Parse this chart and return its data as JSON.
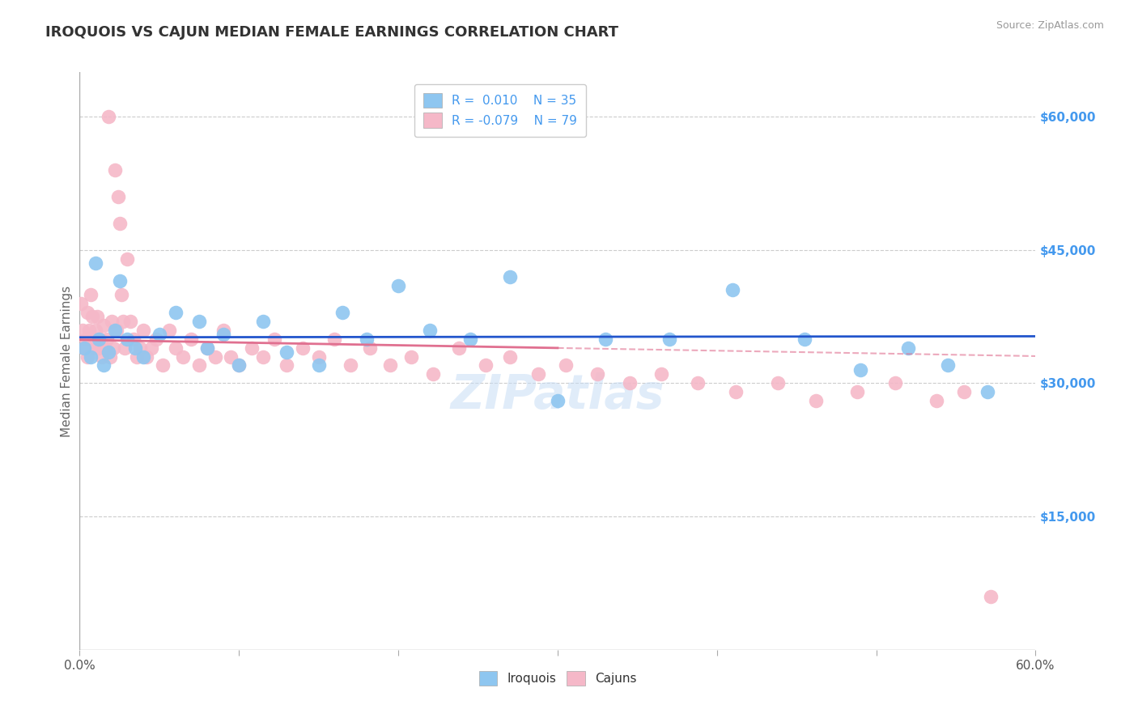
{
  "title": "IROQUOIS VS CAJUN MEDIAN FEMALE EARNINGS CORRELATION CHART",
  "source_text": "Source: ZipAtlas.com",
  "ylabel": "Median Female Earnings",
  "x_min": 0.0,
  "x_max": 0.6,
  "y_min": 0,
  "y_max": 65000,
  "y_ticks": [
    15000,
    30000,
    45000,
    60000
  ],
  "y_tick_labels": [
    "$15,000",
    "$30,000",
    "$45,000",
    "$60,000"
  ],
  "iroquois_color": "#8ec6f0",
  "cajun_color": "#f5b8c8",
  "iroquois_line_color": "#2255cc",
  "cajun_line_color": "#e07090",
  "legend_bottom_iroquois": "Iroquois",
  "legend_bottom_cajun": "Cajuns",
  "R_iroquois": 0.01,
  "R_cajun": -0.079,
  "N_iroquois": 35,
  "N_cajun": 79,
  "iroquois_x": [
    0.003,
    0.007,
    0.01,
    0.012,
    0.015,
    0.018,
    0.022,
    0.025,
    0.03,
    0.035,
    0.04,
    0.05,
    0.06,
    0.075,
    0.08,
    0.09,
    0.1,
    0.115,
    0.13,
    0.15,
    0.165,
    0.18,
    0.2,
    0.22,
    0.245,
    0.27,
    0.3,
    0.33,
    0.37,
    0.41,
    0.455,
    0.49,
    0.52,
    0.545,
    0.57
  ],
  "iroquois_y": [
    34000,
    33000,
    43500,
    35000,
    32000,
    33500,
    36000,
    41500,
    35000,
    34000,
    33000,
    35500,
    38000,
    37000,
    34000,
    35500,
    32000,
    37000,
    33500,
    32000,
    38000,
    35000,
    41000,
    36000,
    35000,
    42000,
    28000,
    35000,
    35000,
    40500,
    35000,
    31500,
    34000,
    32000,
    29000
  ],
  "cajun_x": [
    0.001,
    0.002,
    0.003,
    0.004,
    0.005,
    0.005,
    0.006,
    0.007,
    0.008,
    0.009,
    0.01,
    0.01,
    0.011,
    0.012,
    0.013,
    0.014,
    0.015,
    0.016,
    0.017,
    0.018,
    0.019,
    0.02,
    0.021,
    0.022,
    0.023,
    0.024,
    0.025,
    0.026,
    0.027,
    0.028,
    0.03,
    0.032,
    0.034,
    0.036,
    0.038,
    0.04,
    0.042,
    0.045,
    0.048,
    0.052,
    0.056,
    0.06,
    0.065,
    0.07,
    0.075,
    0.08,
    0.085,
    0.09,
    0.095,
    0.1,
    0.108,
    0.115,
    0.122,
    0.13,
    0.14,
    0.15,
    0.16,
    0.17,
    0.182,
    0.195,
    0.208,
    0.222,
    0.238,
    0.255,
    0.27,
    0.288,
    0.305,
    0.325,
    0.345,
    0.365,
    0.388,
    0.412,
    0.438,
    0.462,
    0.488,
    0.512,
    0.538,
    0.555,
    0.572
  ],
  "cajun_y": [
    39000,
    36000,
    34000,
    35000,
    38000,
    33000,
    36000,
    40000,
    37500,
    35000,
    34000,
    36000,
    37500,
    34000,
    35000,
    33000,
    36500,
    34000,
    35000,
    60000,
    33000,
    37000,
    34000,
    54000,
    36000,
    51000,
    48000,
    40000,
    37000,
    34000,
    44000,
    37000,
    35000,
    33000,
    34000,
    36000,
    33000,
    34000,
    35000,
    32000,
    36000,
    34000,
    33000,
    35000,
    32000,
    34000,
    33000,
    36000,
    33000,
    32000,
    34000,
    33000,
    35000,
    32000,
    34000,
    33000,
    35000,
    32000,
    34000,
    32000,
    33000,
    31000,
    34000,
    32000,
    33000,
    31000,
    32000,
    31000,
    30000,
    31000,
    30000,
    29000,
    30000,
    28000,
    29000,
    30000,
    28000,
    29000,
    6000
  ],
  "watermark": "ZIPatlas",
  "background_color": "#ffffff",
  "grid_color": "#cccccc",
  "title_color": "#333333",
  "axis_label_color": "#666666",
  "right_tick_color": "#4499ee"
}
